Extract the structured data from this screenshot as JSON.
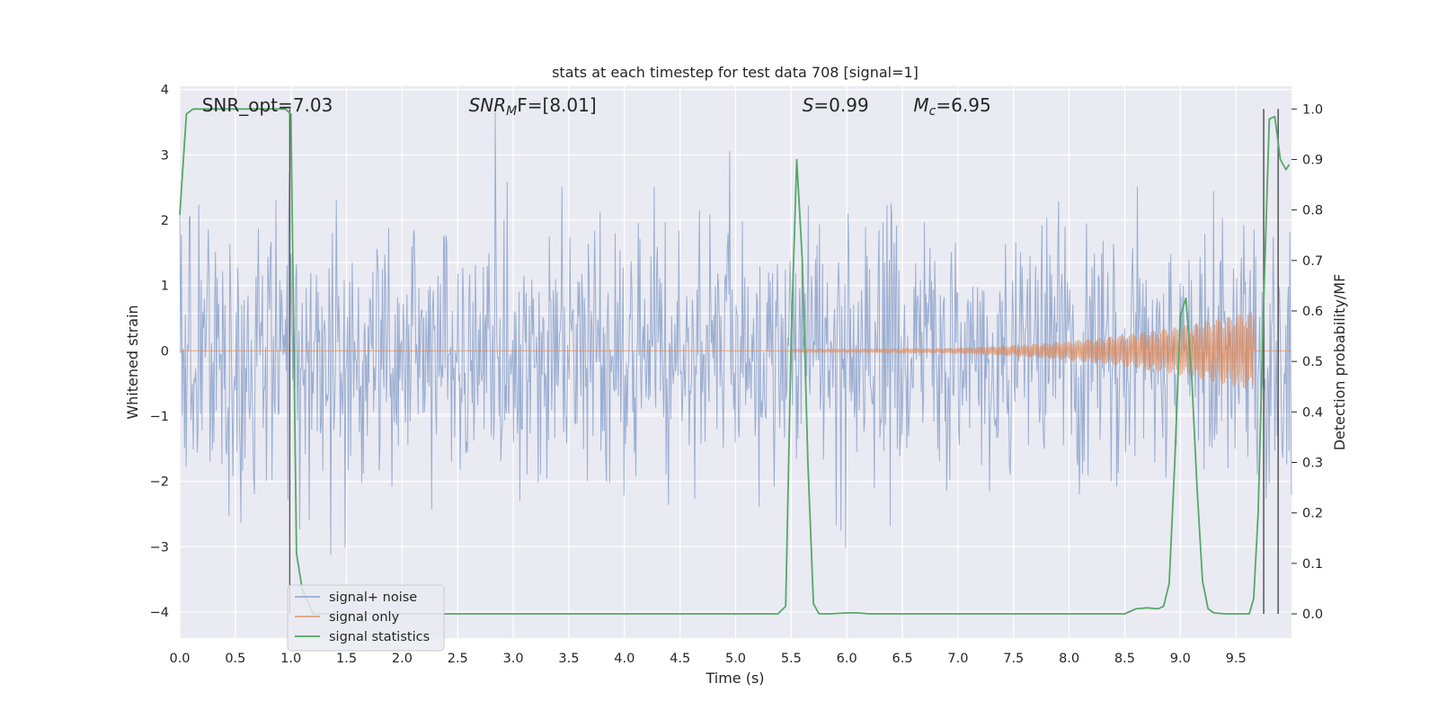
{
  "chart_data": {
    "type": "line",
    "title": "stats at each timestep for test data 708 [signal=1]",
    "xlabel": "Time (s)",
    "ylabel_left": "Whitened strain",
    "ylabel_right": "Detection probability/MF",
    "xlim": [
      0,
      10
    ],
    "ylim_left": [
      -4.4,
      4.05
    ],
    "ylim_right": [
      -0.048,
      1.045
    ],
    "x_ticks": [
      0,
      0.5,
      1,
      1.5,
      2,
      2.5,
      3,
      3.5,
      4,
      4.5,
      5,
      5.5,
      6,
      6.5,
      7,
      7.5,
      8,
      8.5,
      9,
      9.5
    ],
    "x_tick_labels": [
      "0.0",
      "0.5",
      "1.0",
      "1.5",
      "2.0",
      "2.5",
      "3.0",
      "3.5",
      "4.0",
      "4.5",
      "5.0",
      "5.5",
      "6.0",
      "6.5",
      "7.0",
      "7.5",
      "8.0",
      "8.5",
      "9.0",
      "9.5"
    ],
    "y_left_ticks": [
      -4,
      -3,
      -2,
      -1,
      0,
      1,
      2,
      3,
      4
    ],
    "y_left_tick_labels": [
      "−4",
      "−3",
      "−2",
      "−1",
      "0",
      "1",
      "2",
      "3",
      "4"
    ],
    "y_right_ticks": [
      0,
      0.1,
      0.2,
      0.3,
      0.4,
      0.5,
      0.6,
      0.7,
      0.8,
      0.9,
      1.0
    ],
    "y_right_tick_labels": [
      "0.0",
      "0.1",
      "0.2",
      "0.3",
      "0.4",
      "0.5",
      "0.6",
      "0.7",
      "0.8",
      "0.9",
      "1.0"
    ],
    "grid": true,
    "legend_position": "lower-left",
    "annotations": [
      {
        "text": "SNR_opt=7.03",
        "x": 0.2
      },
      {
        "base": "SNR",
        "sub": "M",
        "rest": "F=[8.01]",
        "x": 2.6
      },
      {
        "base": "S",
        "rest": "=0.99",
        "x": 5.6
      },
      {
        "base": "M",
        "sub": "c",
        "rest": "=6.95",
        "x": 6.6
      }
    ],
    "series": [
      {
        "name": "signal+ noise",
        "color": "#4c72b0",
        "kind": "noise",
        "description_values": {
          "center": 0.0,
          "typical_band": [
            -1.7,
            1.7
          ],
          "max": 3.65,
          "min": -4.05
        }
      },
      {
        "name": "signal only",
        "color": "#dd8452",
        "kind": "chirp",
        "x_start": 5.5,
        "x_peak": 9.66,
        "amplitude_start": 0.02,
        "amplitude_peak": 0.62
      },
      {
        "name": "signal statistics",
        "color": "#55a868",
        "kind": "line",
        "axis": "right",
        "x": [
          0,
          0.06,
          0.12,
          0.25,
          0.5,
          0.75,
          0.95,
          1.0,
          1.05,
          1.1,
          1.2,
          2.0,
          3.0,
          4.0,
          5.0,
          5.38,
          5.45,
          5.5,
          5.55,
          5.6,
          5.65,
          5.7,
          5.75,
          5.85,
          6.0,
          6.1,
          6.2,
          7.0,
          8.0,
          8.5,
          8.6,
          8.7,
          8.8,
          8.85,
          8.9,
          8.95,
          9.0,
          9.05,
          9.1,
          9.15,
          9.2,
          9.25,
          9.3,
          9.4,
          9.55,
          9.62,
          9.66,
          9.7,
          9.75,
          9.8,
          9.85,
          9.9,
          9.95,
          9.98
        ],
        "y": [
          0.79,
          0.99,
          1.0,
          1.0,
          1.0,
          1.0,
          1.0,
          0.99,
          0.12,
          0.05,
          0.0,
          0.0,
          0.0,
          0.0,
          0.0,
          0.0,
          0.015,
          0.55,
          0.9,
          0.7,
          0.3,
          0.02,
          0.0,
          0.0,
          0.002,
          0.002,
          0.0,
          0.0,
          0.0,
          0.0,
          0.01,
          0.012,
          0.01,
          0.015,
          0.06,
          0.3,
          0.59,
          0.625,
          0.48,
          0.25,
          0.065,
          0.01,
          0.002,
          0.0,
          0.0,
          0.0,
          0.03,
          0.2,
          0.62,
          0.98,
          0.985,
          0.9,
          0.88,
          0.89
        ]
      }
    ],
    "vertical_lines": [
      {
        "x": 0.99,
        "color": "#555555"
      },
      {
        "x": 9.75,
        "color": "#555555"
      },
      {
        "x": 9.88,
        "color": "#555555"
      }
    ],
    "horizontal_lines_left": [
      1.35,
      0.57,
      -0.2,
      -0.97
    ]
  }
}
